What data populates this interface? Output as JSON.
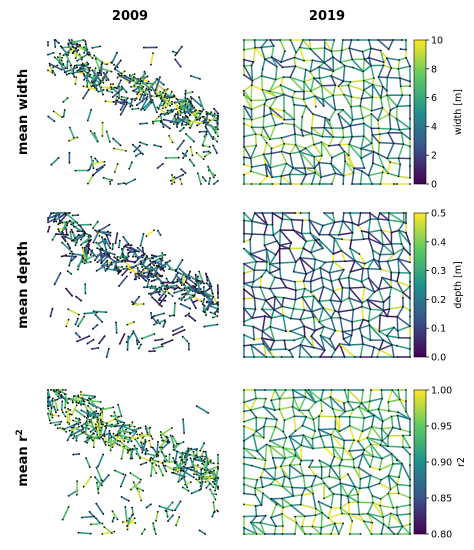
{
  "columns": [
    "2009",
    "2019"
  ],
  "rows": [
    {
      "label": "mean width",
      "superscript": ""
    },
    {
      "label": "mean depth",
      "superscript": ""
    },
    {
      "label": "mean r",
      "superscript": "2"
    }
  ],
  "colormap": {
    "name": "viridis",
    "stops": [
      "#440154",
      "#3b528b",
      "#21918c",
      "#5ec962",
      "#fde725"
    ]
  },
  "colorbars": [
    {
      "label": "width [m]",
      "range": [
        0,
        10
      ],
      "ticks": [
        "0",
        "2",
        "4",
        "6",
        "8",
        "10"
      ]
    },
    {
      "label": "depth [m]",
      "range": [
        0.0,
        0.5
      ],
      "ticks": [
        "0.0",
        "0.1",
        "0.2",
        "0.3",
        "0.4",
        "0.5"
      ]
    },
    {
      "label": "r2",
      "range": [
        0.8,
        1.0
      ],
      "ticks": [
        "0.80",
        "0.85",
        "0.90",
        "0.95",
        "1.00"
      ]
    }
  ]
}
